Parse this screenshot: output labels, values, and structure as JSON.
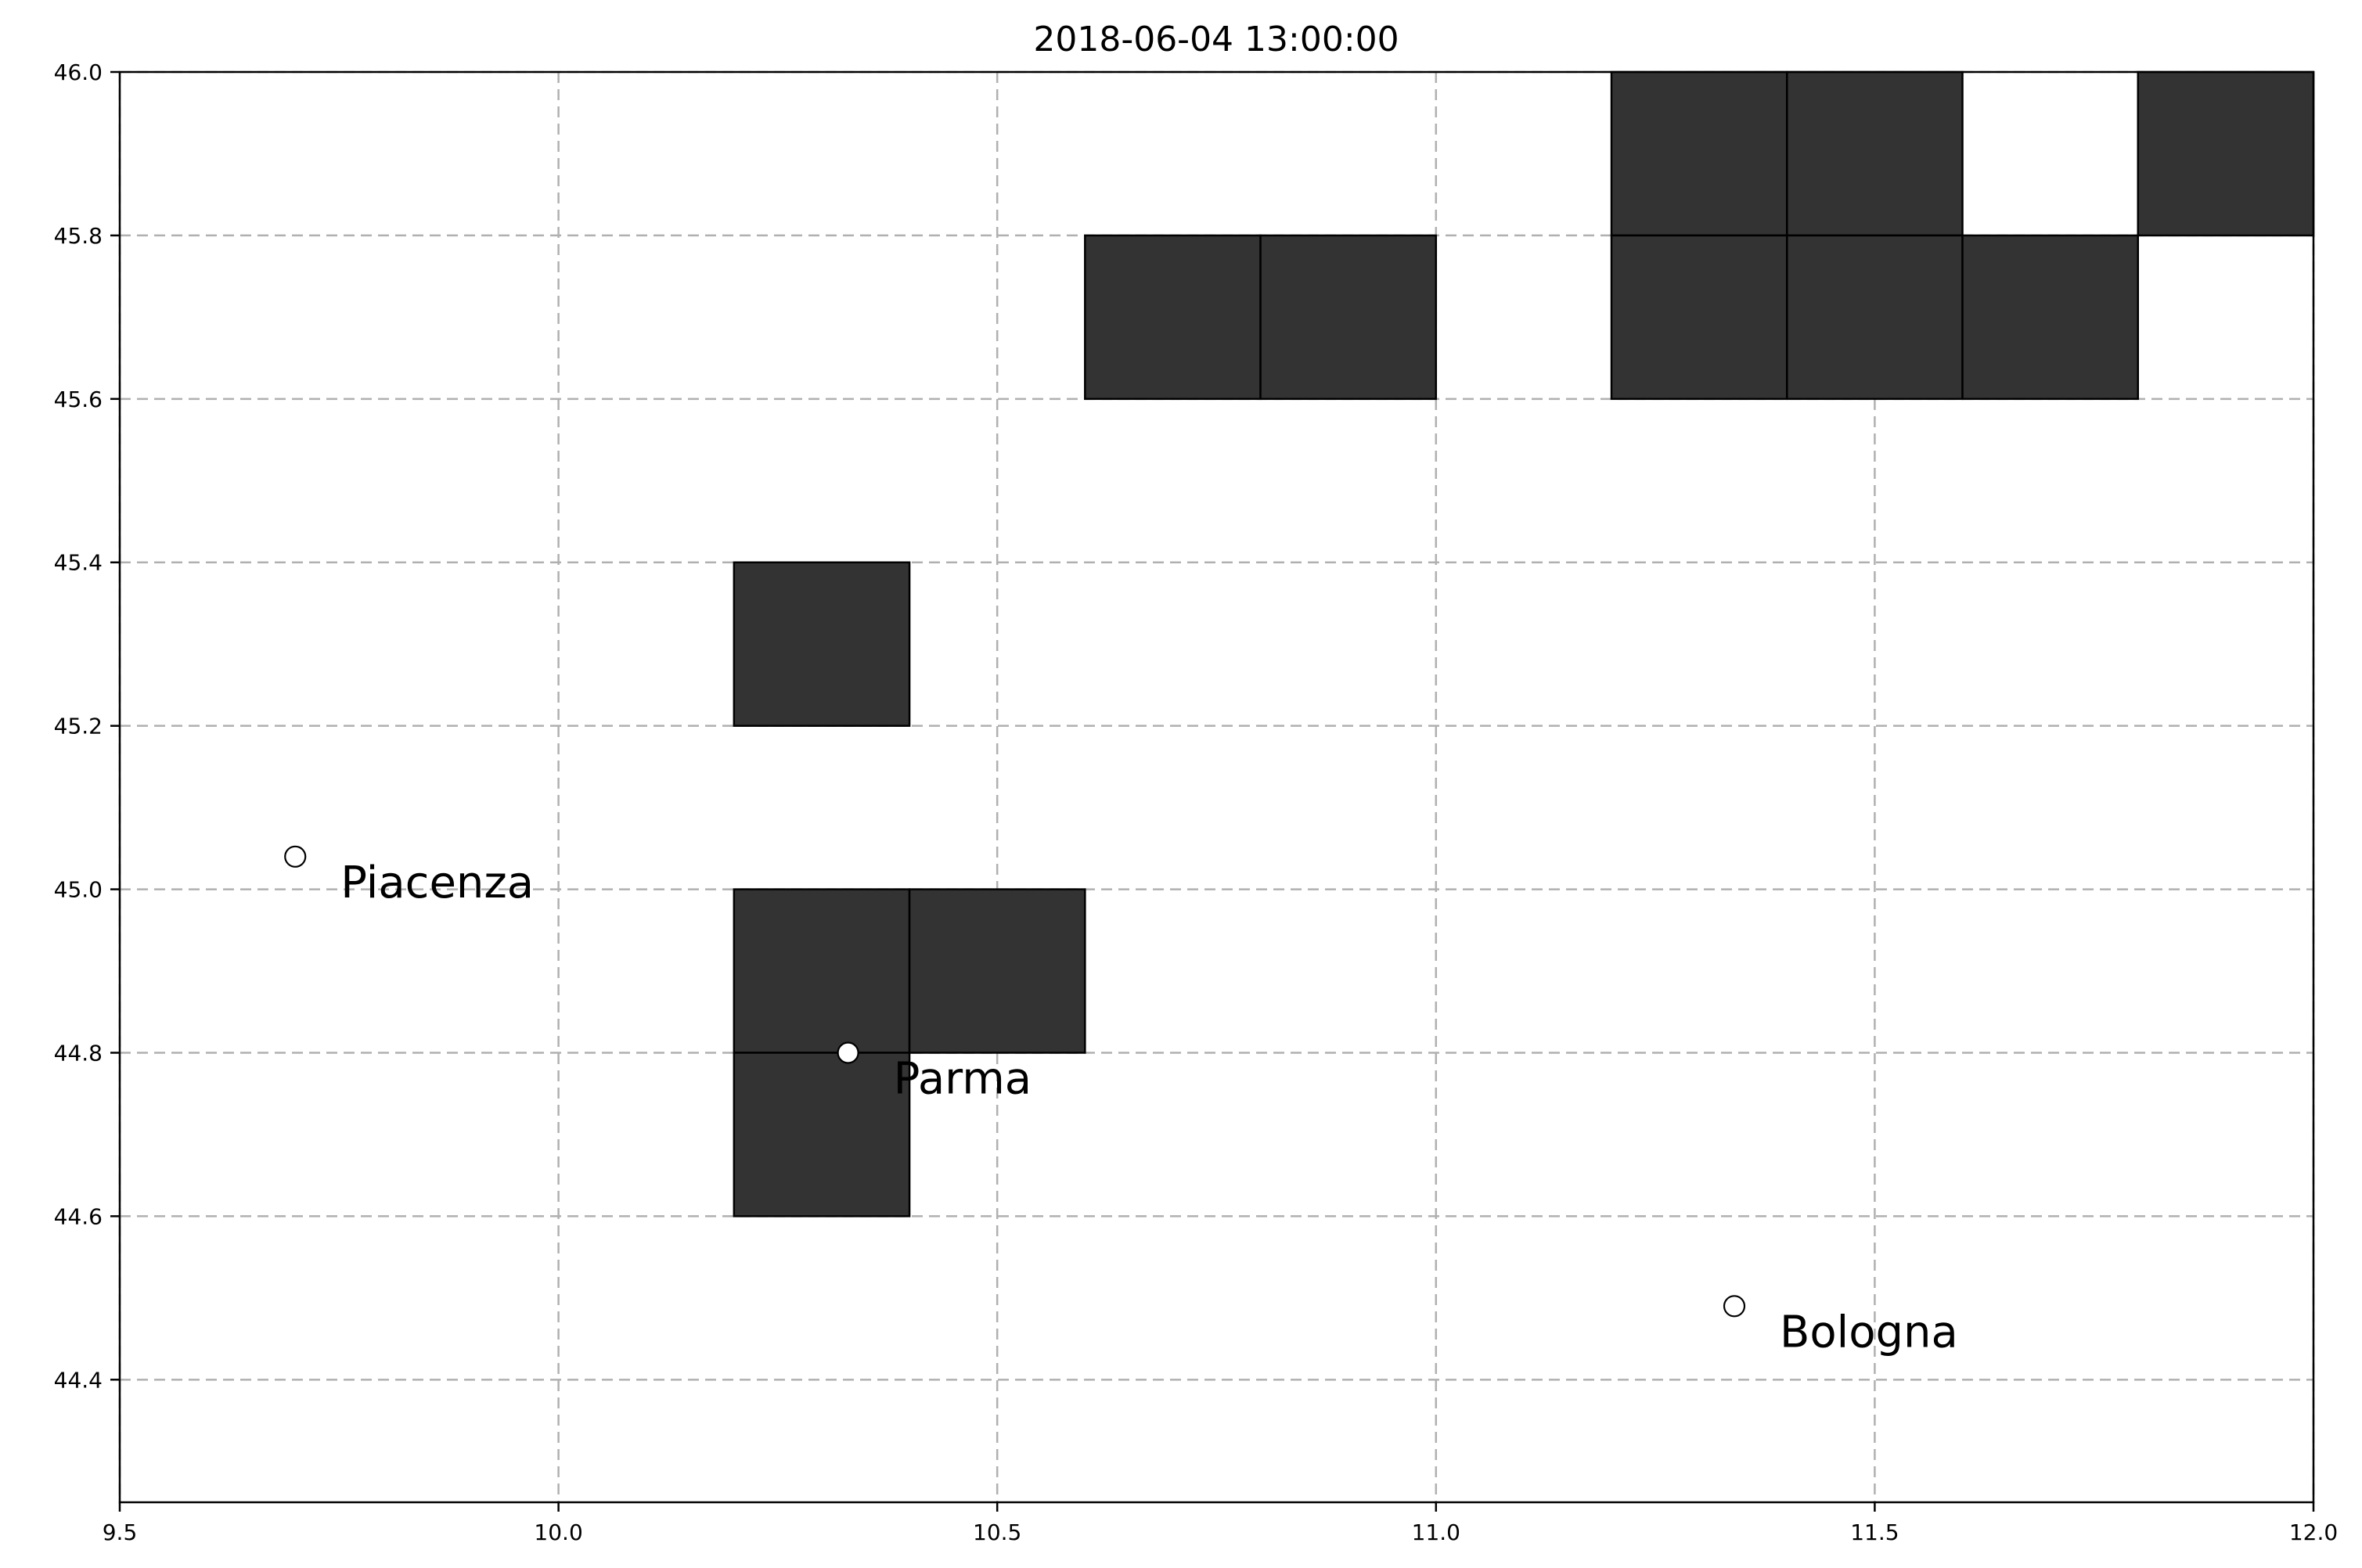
{
  "chart_data": {
    "type": "heatmap",
    "title": "2018-06-04 13:00:00",
    "xlim": [
      9.5,
      12.0
    ],
    "ylim": [
      44.25,
      46.0
    ],
    "xticks": [
      "9.5",
      "10.0",
      "10.5",
      "11.0",
      "11.5",
      "12.0"
    ],
    "xtick_values": [
      9.5,
      10.0,
      10.5,
      11.0,
      11.5,
      12.0
    ],
    "yticks": [
      "44.4",
      "44.6",
      "44.8",
      "45.0",
      "45.2",
      "45.4",
      "45.6",
      "45.8",
      "46.0"
    ],
    "ytick_values": [
      44.4,
      44.6,
      44.8,
      45.0,
      45.2,
      45.4,
      45.6,
      45.8,
      46.0
    ],
    "grid": true,
    "cell_size": 0.2,
    "cell_color": "#333333",
    "cells": [
      {
        "lon": 11.2,
        "lat": 45.8
      },
      {
        "lon": 11.4,
        "lat": 45.8
      },
      {
        "lon": 11.8,
        "lat": 45.8
      },
      {
        "lon": 10.6,
        "lat": 45.6
      },
      {
        "lon": 10.8,
        "lat": 45.6
      },
      {
        "lon": 11.2,
        "lat": 45.6
      },
      {
        "lon": 11.4,
        "lat": 45.6
      },
      {
        "lon": 11.6,
        "lat": 45.6
      },
      {
        "lon": 10.2,
        "lat": 45.2
      },
      {
        "lon": 10.2,
        "lat": 44.8
      },
      {
        "lon": 10.4,
        "lat": 44.8
      },
      {
        "lon": 10.2,
        "lat": 44.6
      }
    ],
    "cities": [
      {
        "name": "Piacenza",
        "lon": 9.7,
        "lat": 45.04
      },
      {
        "name": "Parma",
        "lon": 10.33,
        "lat": 44.8
      },
      {
        "name": "Bologna",
        "lon": 11.34,
        "lat": 44.49
      }
    ]
  }
}
